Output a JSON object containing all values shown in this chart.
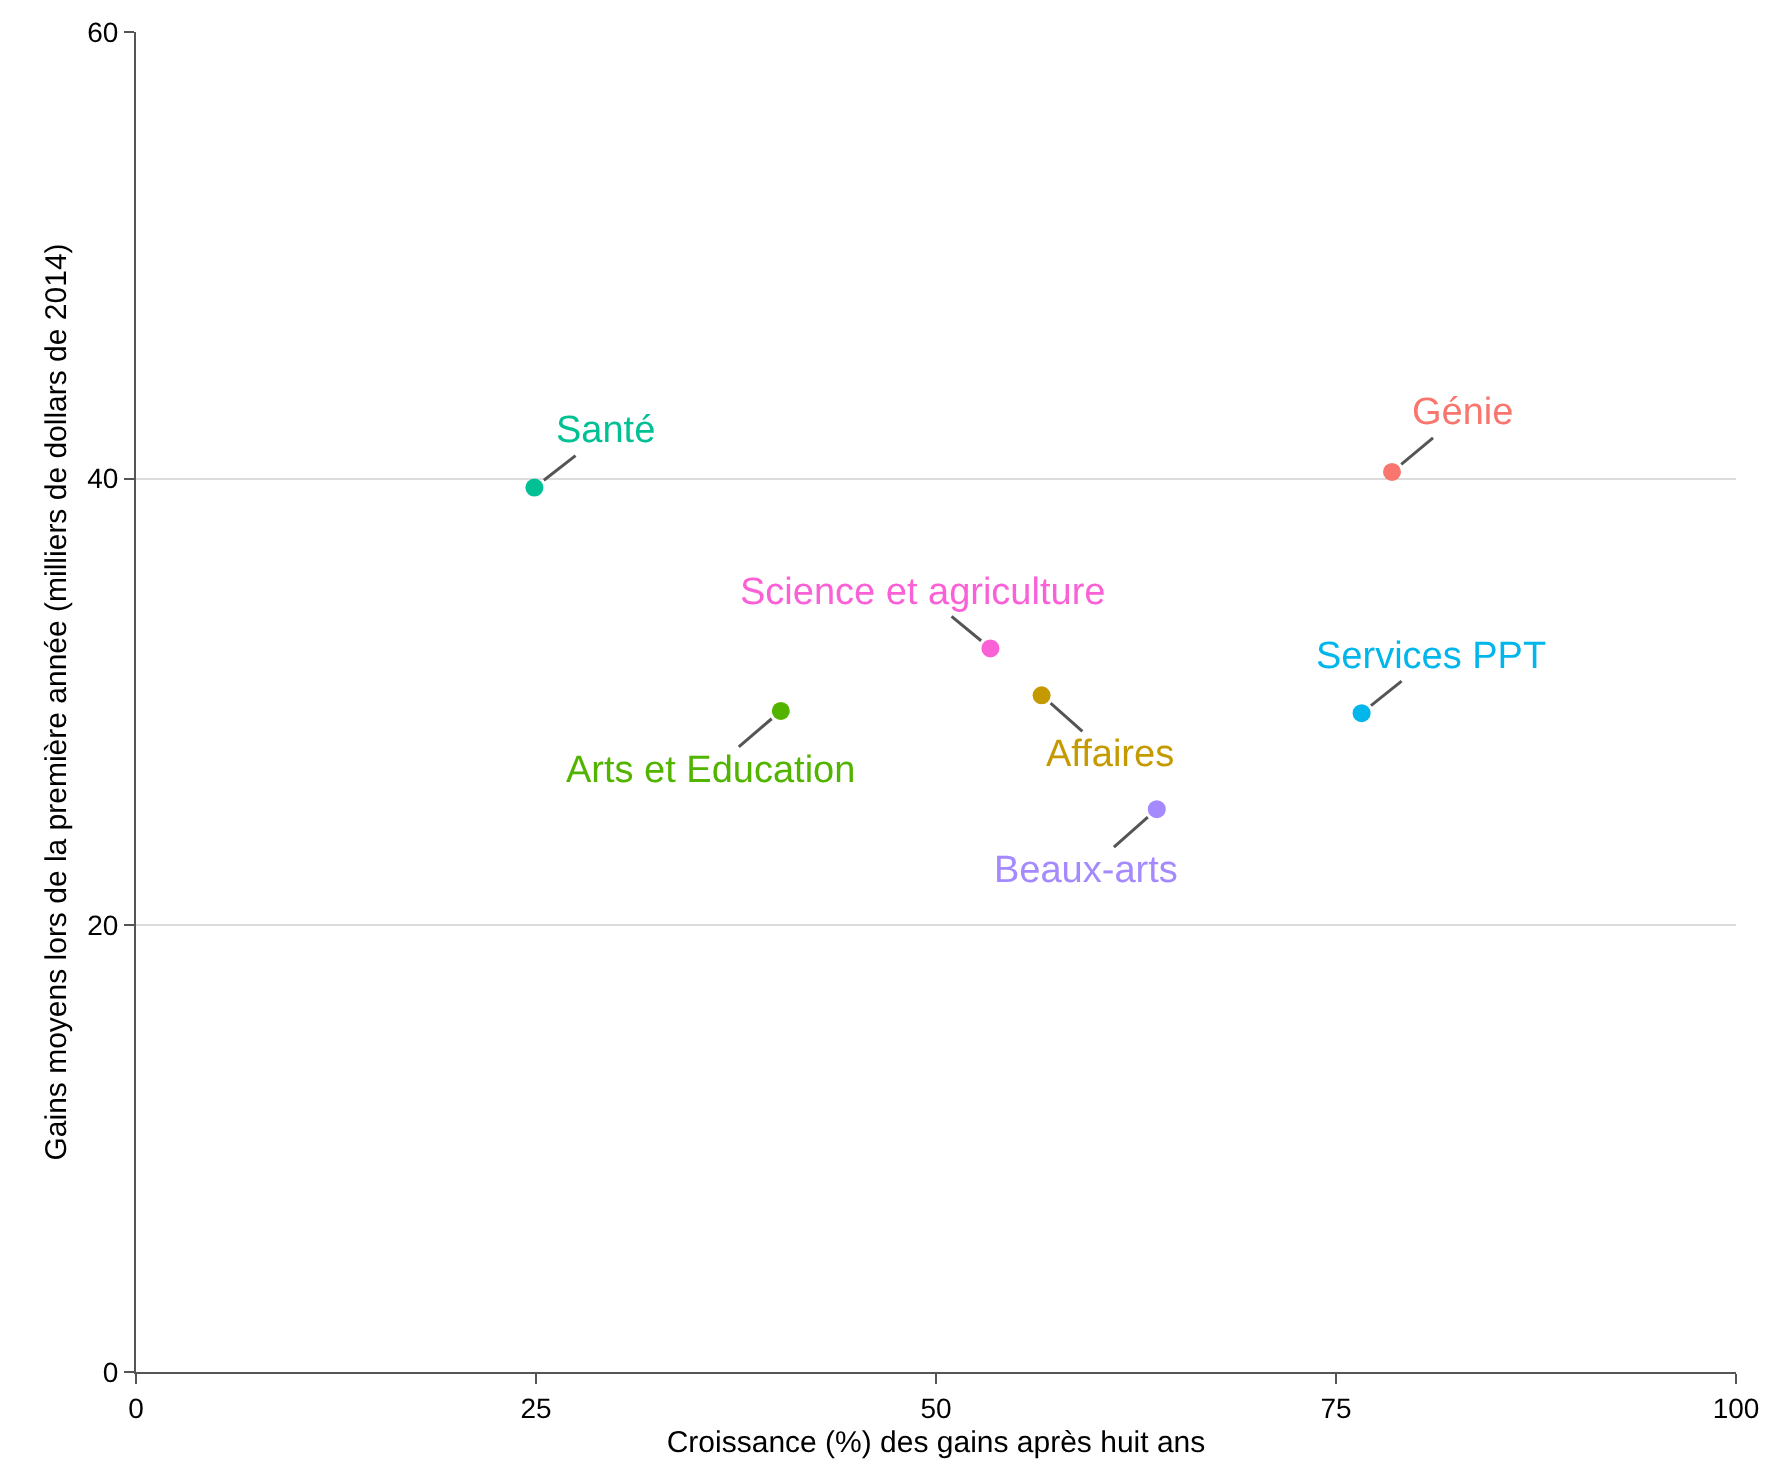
{
  "chart_data": {
    "type": "scatter",
    "xlabel": "Croissance (%) des gains après huit ans",
    "ylabel": "Gains moyens lors de la première année (milliers de dollars de 2014)",
    "xlim": [
      0,
      100
    ],
    "xticks": [
      0,
      25,
      50,
      75,
      100
    ],
    "ylim": [
      0,
      60
    ],
    "yticks": [
      0,
      20,
      40,
      60
    ],
    "grid": "y",
    "legend": false,
    "marker": "circle",
    "series": [
      {
        "name": "Génie",
        "color": "#f8766d",
        "x": [
          78.5
        ],
        "values": [
          40.3
        ]
      },
      {
        "name": "Affaires",
        "color": "#c49a00",
        "x": [
          56.6
        ],
        "values": [
          30.3
        ]
      },
      {
        "name": "Arts et Education",
        "color": "#53b400",
        "x": [
          40.3
        ],
        "values": [
          29.6
        ]
      },
      {
        "name": "Santé",
        "color": "#00c094",
        "x": [
          24.9
        ],
        "values": [
          39.6
        ]
      },
      {
        "name": "Services PPT",
        "color": "#00b6eb",
        "x": [
          76.6
        ],
        "values": [
          29.5
        ]
      },
      {
        "name": "Beaux-arts",
        "color": "#a58aff",
        "x": [
          63.8
        ],
        "values": [
          25.2
        ]
      },
      {
        "name": "Science et agriculture",
        "color": "#fb61d7",
        "x": [
          53.4
        ],
        "values": [
          32.4
        ]
      }
    ]
  }
}
